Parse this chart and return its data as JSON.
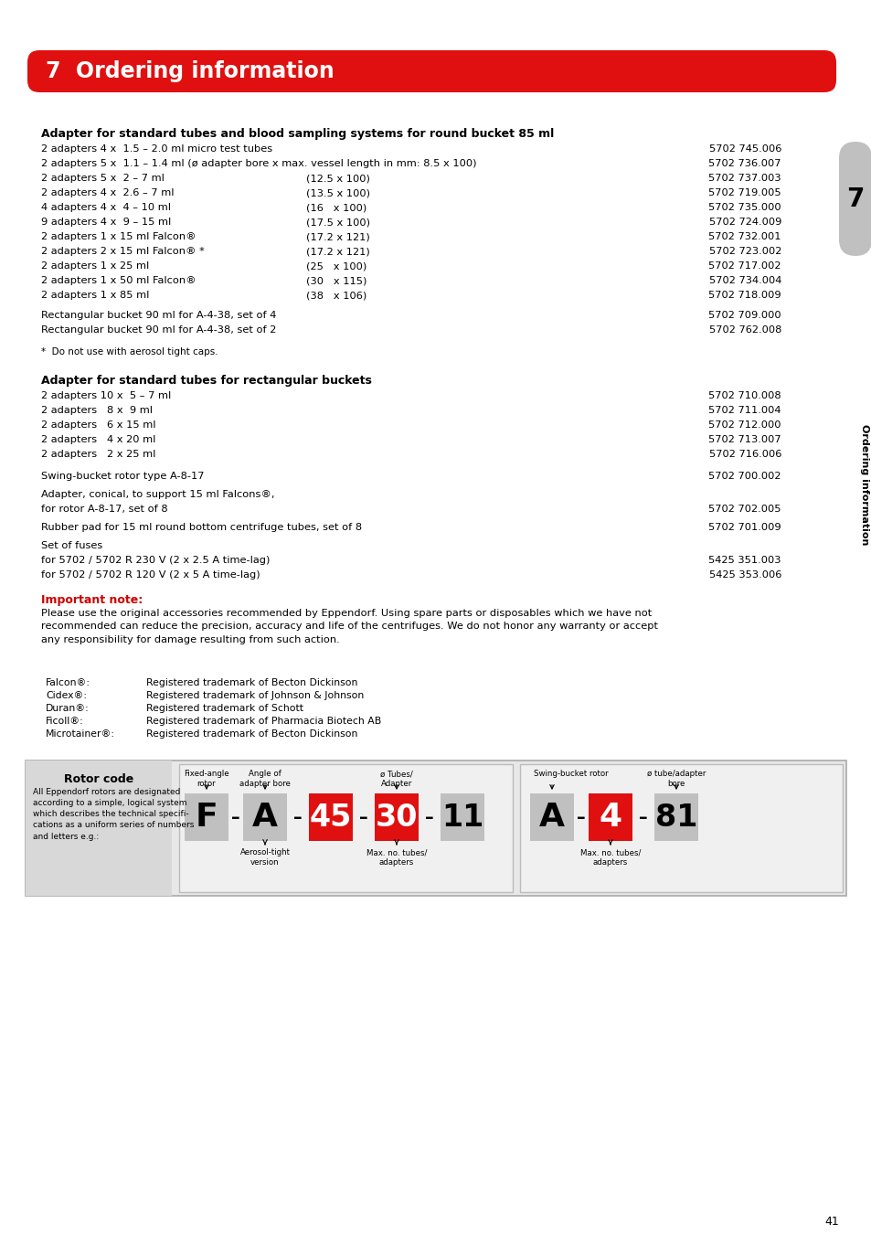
{
  "title": "7  Ordering information",
  "title_bg": "#e01010",
  "title_color": "#ffffff",
  "page_bg": "#ffffff",
  "section1_header": "Adapter for standard tubes and blood sampling systems for round bucket 85 ml",
  "section1_items": [
    [
      "2 adapters 4 x  1.5 – 2.0 ml micro test tubes",
      "",
      "5702 745.006"
    ],
    [
      "2 adapters 5 x  1.1 – 1.4 ml (ø adapter bore x max. vessel length in mm: 8.5 x 100)",
      "",
      "5702 736.007"
    ],
    [
      "2 adapters 5 x  2 – 7 ml",
      "(12.5 x 100)",
      "5702 737.003"
    ],
    [
      "2 adapters 4 x  2.6 – 7 ml",
      "(13.5 x 100)",
      "5702 719.005"
    ],
    [
      "4 adapters 4 x  4 – 10 ml",
      "(16   x 100)",
      "5702 735.000"
    ],
    [
      "9 adapters 4 x  9 – 15 ml",
      "(17.5 x 100)",
      "5702 724.009"
    ],
    [
      "2 adapters 1 x 15 ml Falcon®",
      "(17.2 x 121)",
      "5702 732.001"
    ],
    [
      "2 adapters 2 x 15 ml Falcon® *",
      "(17.2 x 121)",
      "5702 723.002"
    ],
    [
      "2 adapters 1 x 25 ml",
      "(25   x 100)",
      "5702 717.002"
    ],
    [
      "2 adapters 1 x 50 ml Falcon®",
      "(30   x 115)",
      "5702 734.004"
    ],
    [
      "2 adapters 1 x 85 ml",
      "(38   x 106)",
      "5702 718.009"
    ]
  ],
  "section1_extra": [
    [
      "Rectangular bucket 90 ml for A-4-38, set of 4",
      "5702 709.000"
    ],
    [
      "Rectangular bucket 90 ml for A-4-38, set of 2",
      "5702 762.008"
    ]
  ],
  "section1_footnote": "*  Do not use with aerosol tight caps.",
  "section2_header": "Adapter for standard tubes for rectangular buckets",
  "section2_items": [
    [
      "2 adapters 10 x  5 – 7 ml",
      "5702 710.008"
    ],
    [
      "2 adapters   8 x  9 ml",
      "5702 711.004"
    ],
    [
      "2 adapters   6 x 15 ml",
      "5702 712.000"
    ],
    [
      "2 adapters   4 x 20 ml",
      "5702 713.007"
    ],
    [
      "2 adapters   2 x 25 ml",
      "5702 716.006"
    ]
  ],
  "single_items": [
    [
      "Swing-bucket rotor type A-8-17",
      "5702 700.002"
    ],
    [
      "Adapter, conical, to support 15 ml Falcons®,\nfor rotor A-8-17, set of 8",
      "5702 702.005"
    ],
    [
      "Rubber pad for 15 ml round bottom centrifuge tubes, set of 8",
      "5702 701.009"
    ]
  ],
  "fuses_header": "Set of fuses",
  "fuses_items": [
    [
      "for 5702 / 5702 R 230 V (2 x 2.5 A time-lag)",
      "5425 351.003"
    ],
    [
      "for 5702 / 5702 R 120 V (2 x 5 A time-lag)",
      "5425 353.006"
    ]
  ],
  "important_note_label": "Important note:",
  "important_note_color": "#cc0000",
  "important_note_text": "Please use the original accessories recommended by Eppendorf. Using spare parts or disposables which we have not\nrecommended can reduce the precision, accuracy and life of the centrifuges. We do not honor any warranty or accept\nany responsibility for damage resulting from such action.",
  "trademarks": [
    [
      "Falcon®:",
      "Registered trademark of Becton Dickinson"
    ],
    [
      "Cidex®:",
      "Registered trademark of Johnson & Johnson"
    ],
    [
      "Duran®:",
      "Registered trademark of Schott"
    ],
    [
      "Ficoll®:",
      "Registered trademark of Pharmacia Biotech AB"
    ],
    [
      "Microtainer®:",
      "Registered trademark of Becton Dickinson"
    ]
  ],
  "sidebar_text": "Ordering information",
  "sidebar_number": "7",
  "page_number": "41",
  "rotor_box": {
    "rotor_code_label": "Rotor code",
    "rotor_desc": "All Eppendorf rotors are designated\naccording to a simple, logical system\nwhich describes the technical specifi-\ncations as a uniform series of numbers\nand letters e.g.:",
    "fixed_angle_label": "Fixed-angle\nrotor",
    "angle_label": "Angle of\nadapter bore",
    "tube_label": "ø Tubes/\nAdapter",
    "swing_label": "Swing-bucket rotor",
    "tube_adapter_label": "ø tube/adapter\nbore",
    "aerosol_label": "Aerosol-tight\nversion",
    "max_tubes_label": "Max. no. tubes/\nadapters",
    "max_tubes2_label": "Max. no. tubes/\nadapters"
  }
}
